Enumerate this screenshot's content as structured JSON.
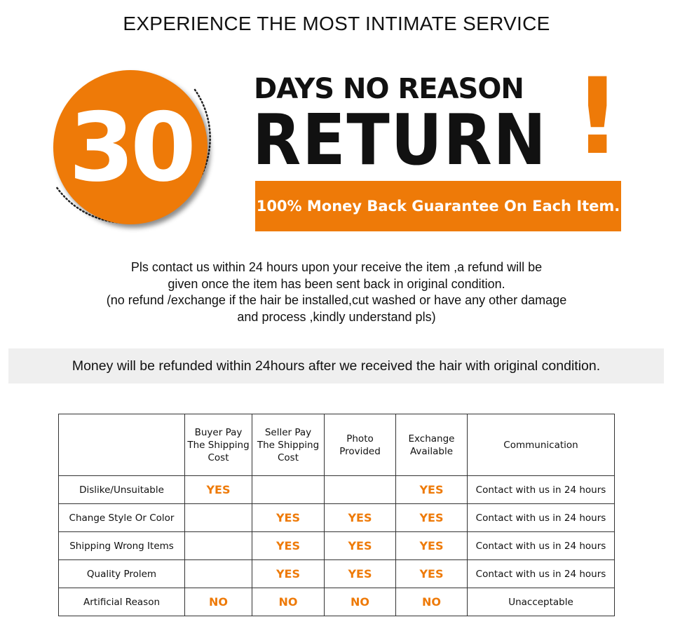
{
  "header": "EXPERIENCE THE MOST INTIMATE SERVICE",
  "badge_number": "30",
  "headline_small": "DAYS NO REASON",
  "headline_big": "RETURN",
  "exclamation": "!",
  "banner": "100% Money Back Guarantee On Each Item.",
  "paragraph": [
    "Pls contact us within 24 hours upon your receive the item ,a refund will be",
    "given once the item has been sent back in original condition.",
    "(no refund /exchange if the hair be installed,cut washed or have any other damage",
    "and process ,kindly understand pls)"
  ],
  "refund_note": "Money will be refunded within 24hours after we received the hair with original condition.",
  "accent_color": "#ee7a08",
  "table": {
    "headers": [
      "",
      "Buyer Pay\nThe Shipping\nCost",
      "Seller Pay\nThe Shipping\nCost",
      "Photo\nProvided",
      "Exchange\nAvailable",
      "Communication"
    ],
    "rows": [
      [
        "Dislike/Unsuitable",
        "YES",
        "",
        "",
        "YES",
        "Contact with us in 24 hours"
      ],
      [
        "Change Style Or Color",
        "",
        "YES",
        "YES",
        "YES",
        "Contact with us in 24 hours"
      ],
      [
        "Shipping Wrong Items",
        "",
        "YES",
        "YES",
        "YES",
        "Contact with us in 24 hours"
      ],
      [
        "Quality Prolem",
        "",
        "YES",
        "YES",
        "YES",
        "Contact with us in 24 hours"
      ],
      [
        "Artificial Reason",
        "NO",
        "NO",
        "NO",
        "NO",
        "Unacceptable"
      ]
    ]
  }
}
